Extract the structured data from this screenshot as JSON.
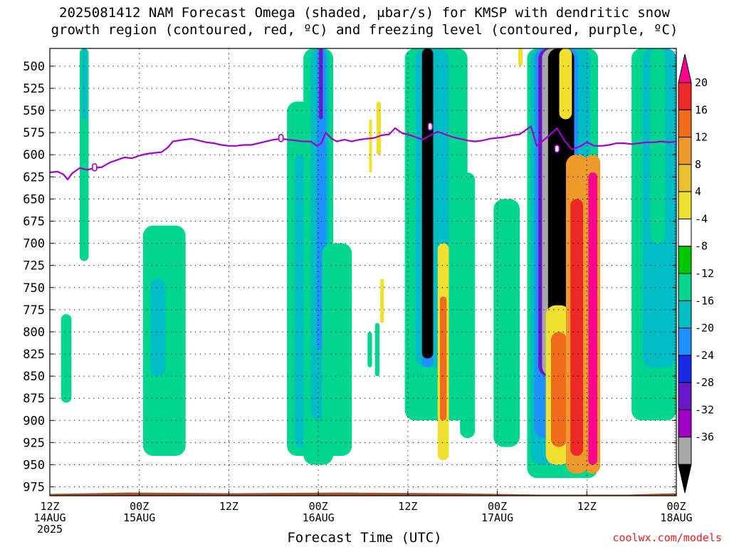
{
  "title": {
    "line1": "2025081412 NAM Forecast Omega (shaded, μbar/s) for KMSP with dendritic snow",
    "line2": "growth region (contoured, red, ºC) and freezing level (contoured, purple, ºC)"
  },
  "credit": "coolwx.com/models",
  "chart_data": {
    "type": "heatmap",
    "xlabel": "Forecast Time (UTC)",
    "ylabel": "",
    "x_range_hours": [
      0,
      84
    ],
    "y_range_mb": [
      480,
      985
    ],
    "y_ticks": [
      500,
      525,
      550,
      575,
      600,
      625,
      650,
      675,
      700,
      725,
      750,
      775,
      800,
      825,
      850,
      875,
      900,
      925,
      950,
      975
    ],
    "x_ticks": [
      {
        "hour": 0,
        "l1": "12Z",
        "l2": "14AUG",
        "l3": "2025"
      },
      {
        "hour": 12,
        "l1": "00Z",
        "l2": "15AUG",
        "l3": ""
      },
      {
        "hour": 24,
        "l1": "12Z",
        "l2": "",
        "l3": ""
      },
      {
        "hour": 36,
        "l1": "00Z",
        "l2": "16AUG",
        "l3": ""
      },
      {
        "hour": 48,
        "l1": "12Z",
        "l2": "",
        "l3": ""
      },
      {
        "hour": 60,
        "l1": "00Z",
        "l2": "17AUG",
        "l3": ""
      },
      {
        "hour": 72,
        "l1": "12Z",
        "l2": "",
        "l3": ""
      },
      {
        "hour": 84,
        "l1": "00Z",
        "l2": "18AUG",
        "l3": ""
      }
    ],
    "grid": true,
    "colorbar": {
      "labels": [
        20,
        16,
        12,
        8,
        4,
        -4,
        -8,
        -12,
        -16,
        -20,
        -24,
        -28,
        -32,
        -36
      ],
      "colors": [
        "#ff0090",
        "#ee2828",
        "#f06c1c",
        "#ee9a2a",
        "#e8c030",
        "#f0e030",
        "#ffffff",
        "#00c800",
        "#00d690",
        "#00bcc4",
        "#1e90ff",
        "#1a28e8",
        "#6818c8",
        "#a000c8",
        "#a8a8a8",
        "#000000"
      ]
    },
    "freezing_level": {
      "color": "#a000c8",
      "label": "0",
      "points": [
        [
          0,
          620
        ],
        [
          1,
          619
        ],
        [
          1.8,
          622
        ],
        [
          2.4,
          628
        ],
        [
          3,
          621
        ],
        [
          4,
          615
        ],
        [
          5,
          617
        ],
        [
          6,
          615
        ],
        [
          7,
          614
        ],
        [
          8,
          609
        ],
        [
          9,
          606
        ],
        [
          10,
          603
        ],
        [
          11,
          604
        ],
        [
          12,
          601
        ],
        [
          13,
          599
        ],
        [
          14,
          598
        ],
        [
          15,
          597
        ],
        [
          15.8,
          592
        ],
        [
          16.5,
          585
        ],
        [
          18,
          583
        ],
        [
          19,
          582
        ],
        [
          20,
          584
        ],
        [
          21,
          586
        ],
        [
          22,
          587
        ],
        [
          23,
          589
        ],
        [
          24,
          590
        ],
        [
          25,
          590
        ],
        [
          26,
          589
        ],
        [
          27,
          589
        ],
        [
          28,
          587
        ],
        [
          29,
          585
        ],
        [
          30,
          583
        ],
        [
          31,
          582
        ],
        [
          32,
          583
        ],
        [
          33,
          584
        ],
        [
          34,
          585
        ],
        [
          35,
          585
        ],
        [
          35.8,
          590
        ],
        [
          36.4,
          587
        ],
        [
          37,
          575
        ],
        [
          37.8,
          582
        ],
        [
          38.5,
          585
        ],
        [
          39.5,
          583
        ],
        [
          40.5,
          585
        ],
        [
          41.5,
          583
        ],
        [
          42.5,
          582
        ],
        [
          43.5,
          581
        ],
        [
          44.5,
          578
        ],
        [
          45.5,
          577
        ],
        [
          46.3,
          570
        ],
        [
          47.3,
          576
        ],
        [
          48,
          577
        ],
        [
          49,
          580
        ],
        [
          50,
          583
        ],
        [
          51,
          578
        ],
        [
          52,
          574
        ],
        [
          53,
          577
        ],
        [
          54,
          580
        ],
        [
          55,
          582
        ],
        [
          56,
          584
        ],
        [
          57,
          585
        ],
        [
          58,
          584
        ],
        [
          59,
          582
        ],
        [
          60,
          581
        ],
        [
          61,
          580
        ],
        [
          62,
          578
        ],
        [
          63,
          577
        ],
        [
          64.5,
          568
        ],
        [
          65.3,
          590
        ],
        [
          66,
          585
        ],
        [
          67,
          578
        ],
        [
          68,
          570
        ],
        [
          69,
          584
        ],
        [
          70,
          594
        ],
        [
          71,
          591
        ],
        [
          72,
          586
        ],
        [
          73,
          590
        ],
        [
          74,
          590
        ],
        [
          75,
          589
        ],
        [
          76,
          587
        ],
        [
          77,
          587
        ],
        [
          78,
          588
        ],
        [
          79,
          587
        ],
        [
          80,
          586
        ],
        [
          81,
          586
        ],
        [
          82,
          585
        ],
        [
          83,
          586
        ],
        [
          84,
          585
        ]
      ],
      "marks": [
        [
          6,
          615
        ],
        [
          31,
          582
        ],
        [
          51,
          569
        ],
        [
          68,
          594
        ]
      ]
    },
    "omega_features": [
      {
        "x": [
          4.0,
          5.2
        ],
        "p": [
          480,
          720
        ],
        "v": -8
      },
      {
        "x": [
          4.3,
          5.0
        ],
        "p": [
          480,
          560
        ],
        "v": -12
      },
      {
        "x": [
          1.5,
          2.9
        ],
        "p": [
          780,
          880
        ],
        "v": -8
      },
      {
        "x": [
          12.5,
          18.2
        ],
        "p": [
          680,
          940
        ],
        "v": -8
      },
      {
        "x": [
          13.5,
          15.5
        ],
        "p": [
          740,
          850
        ],
        "v": -12
      },
      {
        "x": [
          31.8,
          35.8
        ],
        "p": [
          540,
          940
        ],
        "v": -8
      },
      {
        "x": [
          32.8,
          34.8
        ],
        "p": [
          600,
          930
        ],
        "v": -12
      },
      {
        "x": [
          34.0,
          38.0
        ],
        "p": [
          480,
          950
        ],
        "v": -8
      },
      {
        "x": [
          35.0,
          37.4
        ],
        "p": [
          480,
          900
        ],
        "v": -12
      },
      {
        "x": [
          35.8,
          37.0
        ],
        "p": [
          480,
          820
        ],
        "v": -16
      },
      {
        "x": [
          36.1,
          36.6
        ],
        "p": [
          480,
          560
        ],
        "v": -24
      },
      {
        "x": [
          36.5,
          40.5
        ],
        "p": [
          700,
          940
        ],
        "v": -8
      },
      {
        "x": [
          42.6,
          43.2
        ],
        "p": [
          800,
          840
        ],
        "v": -8
      },
      {
        "x": [
          43.6,
          44.2
        ],
        "p": [
          790,
          850
        ],
        "v": -8
      },
      {
        "x": [
          44.3,
          44.8
        ],
        "p": [
          740,
          790
        ],
        "v": 4
      },
      {
        "x": [
          43.8,
          44.4
        ],
        "p": [
          540,
          600
        ],
        "v": 4
      },
      {
        "x": [
          42.8,
          43.2
        ],
        "p": [
          560,
          620
        ],
        "v": 4
      },
      {
        "x": [
          47.6,
          56.0
        ],
        "p": [
          480,
          900
        ],
        "v": -8
      },
      {
        "x": [
          49.0,
          53.5
        ],
        "p": [
          480,
          840
        ],
        "v": -12
      },
      {
        "x": [
          49.9,
          51.4
        ],
        "p": [
          480,
          840
        ],
        "v": -16
      },
      {
        "x": [
          49.9,
          51.4
        ],
        "p": [
          480,
          830
        ],
        "v": -36
      },
      {
        "x": [
          52.0,
          53.5
        ],
        "p": [
          700,
          945
        ],
        "v": 4
      },
      {
        "x": [
          52.3,
          53.2
        ],
        "p": [
          760,
          900
        ],
        "v": 12
      },
      {
        "x": [
          55.0,
          57.0
        ],
        "p": [
          620,
          920
        ],
        "v": -8
      },
      {
        "x": [
          59.5,
          63.0
        ],
        "p": [
          650,
          930
        ],
        "v": -8
      },
      {
        "x": [
          64.0,
          73.5
        ],
        "p": [
          480,
          965
        ],
        "v": -8
      },
      {
        "x": [
          64.5,
          72.5
        ],
        "p": [
          480,
          950
        ],
        "v": -12
      },
      {
        "x": [
          65.0,
          70.8
        ],
        "p": [
          480,
          920
        ],
        "v": -16
      },
      {
        "x": [
          65.5,
          70.3
        ],
        "p": [
          480,
          850
        ],
        "v": -24
      },
      {
        "x": [
          66.0,
          68.8
        ],
        "p": [
          480,
          850
        ],
        "v": -32
      },
      {
        "x": [
          66.8,
          70.3
        ],
        "p": [
          480,
          800
        ],
        "v": -36
      },
      {
        "x": [
          67.7,
          69.5
        ],
        "p": [
          480,
          750
        ],
        "v": -36
      },
      {
        "x": [
          66.5,
          69.8
        ],
        "p": [
          770,
          950
        ],
        "v": 4
      },
      {
        "x": [
          67.2,
          69.3
        ],
        "p": [
          800,
          930
        ],
        "v": 12
      },
      {
        "x": [
          68.3,
          70.0
        ],
        "p": [
          480,
          560
        ],
        "v": 4
      },
      {
        "x": [
          69.2,
          72.2
        ],
        "p": [
          600,
          960
        ],
        "v": 8
      },
      {
        "x": [
          69.8,
          71.5
        ],
        "p": [
          650,
          940
        ],
        "v": 16
      },
      {
        "x": [
          71.7,
          73.8
        ],
        "p": [
          600,
          960
        ],
        "v": 8
      },
      {
        "x": [
          72.2,
          73.4
        ],
        "p": [
          620,
          950
        ],
        "v": 20
      },
      {
        "x": [
          62.8,
          63.4
        ],
        "p": [
          480,
          500
        ],
        "v": 4
      },
      {
        "x": [
          78.0,
          84.0
        ],
        "p": [
          480,
          900
        ],
        "v": -8
      },
      {
        "x": [
          79.5,
          84.0
        ],
        "p": [
          480,
          840
        ],
        "v": -12
      },
      {
        "x": [
          80.5,
          82.5
        ],
        "p": [
          480,
          700
        ],
        "v": -8
      }
    ],
    "surface": {
      "color": "#a0522d",
      "top_mb": 983
    }
  }
}
